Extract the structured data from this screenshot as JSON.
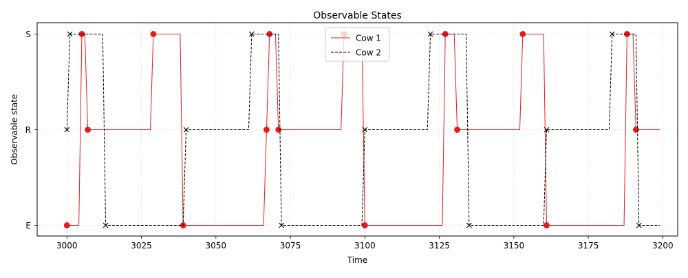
{
  "chart_data": {
    "type": "line",
    "title": "Observable States",
    "xlabel": "Time",
    "ylabel": "Observable state",
    "xlim": [
      2990,
      3205
    ],
    "x_ticks": [
      3000,
      3025,
      3050,
      3075,
      3100,
      3125,
      3150,
      3175,
      3200
    ],
    "y_categories": [
      "E",
      "R",
      "S"
    ],
    "grid": true,
    "legend_position": "top-center",
    "series": [
      {
        "name": "Cow 1",
        "color": "#e41a1c",
        "line_style": "solid",
        "marker": "circle",
        "points": [
          [
            3000,
            "E"
          ],
          [
            3004,
            "E"
          ],
          [
            3005,
            "S"
          ],
          [
            3006,
            "S"
          ],
          [
            3007,
            "R"
          ],
          [
            3028,
            "R"
          ],
          [
            3029,
            "S"
          ],
          [
            3038,
            "S"
          ],
          [
            3039,
            "E"
          ],
          [
            3066,
            "E"
          ],
          [
            3067,
            "R"
          ],
          [
            3068,
            "S"
          ],
          [
            3070,
            "S"
          ],
          [
            3071,
            "R"
          ],
          [
            3092,
            "R"
          ],
          [
            3093,
            "S"
          ],
          [
            3099,
            "S"
          ],
          [
            3100,
            "E"
          ],
          [
            3126,
            "E"
          ],
          [
            3127,
            "S"
          ],
          [
            3130,
            "S"
          ],
          [
            3131,
            "R"
          ],
          [
            3152,
            "R"
          ],
          [
            3153,
            "S"
          ],
          [
            3160,
            "S"
          ],
          [
            3161,
            "E"
          ],
          [
            3187,
            "E"
          ],
          [
            3188,
            "S"
          ],
          [
            3190,
            "S"
          ],
          [
            3191,
            "R"
          ],
          [
            3199,
            "R"
          ]
        ],
        "markers": [
          [
            3000,
            "E"
          ],
          [
            3005,
            "S"
          ],
          [
            3007,
            "R"
          ],
          [
            3029,
            "S"
          ],
          [
            3039,
            "E"
          ],
          [
            3067,
            "R"
          ],
          [
            3068,
            "S"
          ],
          [
            3071,
            "R"
          ],
          [
            3093,
            "S"
          ],
          [
            3100,
            "E"
          ],
          [
            3127,
            "S"
          ],
          [
            3131,
            "R"
          ],
          [
            3153,
            "S"
          ],
          [
            3161,
            "E"
          ],
          [
            3188,
            "S"
          ],
          [
            3191,
            "R"
          ]
        ]
      },
      {
        "name": "Cow 2",
        "color": "#000000",
        "line_style": "dashed",
        "marker": "x",
        "points": [
          [
            3000,
            "R"
          ],
          [
            3001,
            "S"
          ],
          [
            3012,
            "S"
          ],
          [
            3013,
            "E"
          ],
          [
            3039,
            "E"
          ],
          [
            3040,
            "R"
          ],
          [
            3061,
            "R"
          ],
          [
            3062,
            "S"
          ],
          [
            3071,
            "S"
          ],
          [
            3072,
            "E"
          ],
          [
            3099,
            "E"
          ],
          [
            3100,
            "R"
          ],
          [
            3121,
            "R"
          ],
          [
            3122,
            "S"
          ],
          [
            3134,
            "S"
          ],
          [
            3135,
            "E"
          ],
          [
            3160,
            "E"
          ],
          [
            3161,
            "R"
          ],
          [
            3182,
            "R"
          ],
          [
            3183,
            "S"
          ],
          [
            3191,
            "S"
          ],
          [
            3192,
            "E"
          ],
          [
            3199,
            "E"
          ]
        ],
        "markers": [
          [
            3000,
            "R"
          ],
          [
            3001,
            "S"
          ],
          [
            3013,
            "E"
          ],
          [
            3040,
            "R"
          ],
          [
            3062,
            "S"
          ],
          [
            3072,
            "E"
          ],
          [
            3100,
            "R"
          ],
          [
            3122,
            "S"
          ],
          [
            3135,
            "E"
          ],
          [
            3161,
            "R"
          ],
          [
            3183,
            "S"
          ],
          [
            3192,
            "E"
          ]
        ]
      }
    ]
  }
}
